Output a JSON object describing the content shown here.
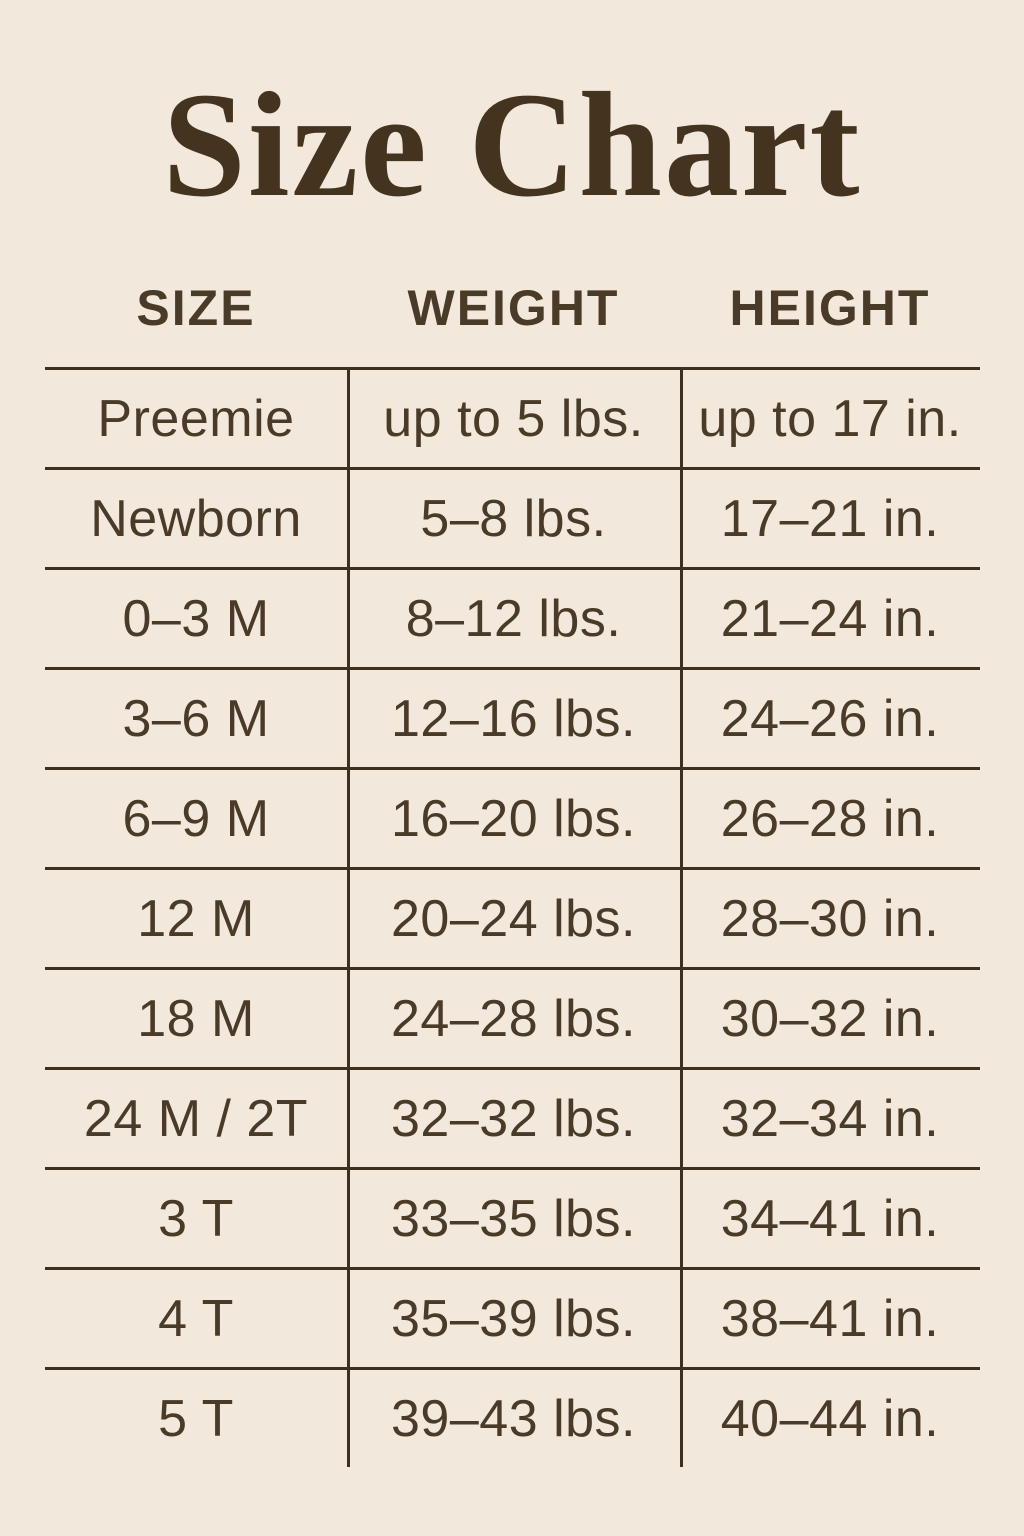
{
  "page": {
    "background_color": "#f2e9dc",
    "text_color": "#4a3a28",
    "line_color": "#3e3021",
    "title_color": "#44331f"
  },
  "title": "Size Chart",
  "table": {
    "headers": {
      "size": "SIZE",
      "weight": "WEIGHT",
      "height": "HEIGHT"
    },
    "rows": [
      {
        "size": "Preemie",
        "weight": "up to 5 lbs.",
        "height": "up to 17 in."
      },
      {
        "size": "Newborn",
        "weight": "5–8 lbs.",
        "height": "17–21 in."
      },
      {
        "size": "0–3 M",
        "weight": "8–12 lbs.",
        "height": "21–24 in."
      },
      {
        "size": "3–6 M",
        "weight": "12–16 lbs.",
        "height": "24–26 in."
      },
      {
        "size": "6–9 M",
        "weight": "16–20 lbs.",
        "height": "26–28 in."
      },
      {
        "size": "12 M",
        "weight": "20–24 lbs.",
        "height": "28–30 in."
      },
      {
        "size": "18 M",
        "weight": "24–28 lbs.",
        "height": "30–32 in."
      },
      {
        "size": "24 M / 2T",
        "weight": "32–32 lbs.",
        "height": "32–34 in."
      },
      {
        "size": "3 T",
        "weight": "33–35 lbs.",
        "height": "34–41 in."
      },
      {
        "size": "4 T",
        "weight": "35–39 lbs.",
        "height": "38–41 in."
      },
      {
        "size": "5 T",
        "weight": "39–43 lbs.",
        "height": "40–44 in."
      }
    ]
  }
}
